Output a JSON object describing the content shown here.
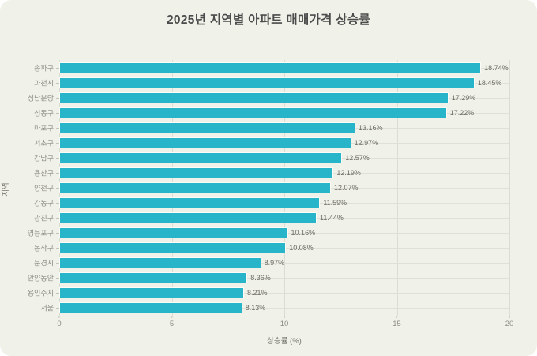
{
  "page": {
    "background": "#ffffff",
    "card_background": "#f0f1e9",
    "grid_color": "#dcddd2",
    "row_grid_color": "#e0e0d6"
  },
  "chart_data": {
    "type": "bar",
    "orientation": "horizontal",
    "title": "2025년 지역별 아파트 매매가격 상승률",
    "xlabel": "상승률 (%)",
    "ylabel": "지역",
    "xlim": [
      0,
      20
    ],
    "xticks": [
      "0",
      "5",
      "10",
      "15",
      "20"
    ],
    "xtick_values": [
      0,
      5,
      10,
      15,
      20
    ],
    "grid": true,
    "legend": null,
    "bar_color": "#29b5c9",
    "bar_edge_color": "#fbfbf7",
    "categories": [
      "송파구",
      "과천시",
      "성남분당",
      "성동구",
      "마포구",
      "서초구",
      "강남구",
      "용산구",
      "양천구",
      "강동구",
      "광진구",
      "영등포구",
      "동작구",
      "문경시",
      "안양동안",
      "용인수지",
      "서울"
    ],
    "values": [
      18.74,
      18.45,
      17.29,
      17.22,
      13.16,
      12.97,
      12.57,
      12.19,
      12.07,
      11.59,
      11.44,
      10.16,
      10.08,
      8.97,
      8.36,
      8.21,
      8.13
    ],
    "value_labels": [
      "18.74%",
      "18.45%",
      "17.29%",
      "17.22%",
      "13.16%",
      "12.97%",
      "12.57%",
      "12.19%",
      "12.07%",
      "11.59%",
      "11.44%",
      "10.16%",
      "10.08%",
      "8.97%",
      "8.36%",
      "8.21%",
      "8.13%"
    ]
  }
}
